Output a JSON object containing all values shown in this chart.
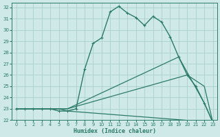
{
  "xlabel": "Humidex (Indice chaleur)",
  "bg_color": "#cfe8e8",
  "grid_color": "#a8d0cc",
  "line_color": "#2a7a6a",
  "xlim": [
    -0.5,
    23.5
  ],
  "ylim": [
    22,
    32.4
  ],
  "xticks": [
    0,
    1,
    2,
    3,
    4,
    5,
    6,
    7,
    8,
    9,
    10,
    11,
    12,
    13,
    14,
    15,
    16,
    17,
    18,
    19,
    20,
    21,
    22,
    23
  ],
  "yticks": [
    22,
    23,
    24,
    25,
    26,
    27,
    28,
    29,
    30,
    31,
    32
  ],
  "lines": [
    {
      "x": [
        0,
        1,
        2,
        3,
        4,
        5,
        6,
        7,
        8,
        9,
        10,
        11,
        12,
        13,
        14,
        15,
        16,
        17,
        18,
        19,
        20,
        21,
        22,
        23
      ],
      "y": [
        23,
        23,
        23,
        23,
        23,
        22.8,
        22.8,
        23.0,
        26.5,
        28.8,
        29.3,
        31.6,
        32.1,
        31.5,
        31.1,
        30.4,
        31.2,
        30.7,
        29.4,
        27.6,
        26.0,
        25.0,
        23.5,
        21.8
      ],
      "marker": "+",
      "lw": 1.0
    },
    {
      "x": [
        0,
        5,
        6,
        19,
        22,
        23
      ],
      "y": [
        23,
        23,
        23,
        27.6,
        23.5,
        21.8
      ],
      "marker": null,
      "lw": 0.9
    },
    {
      "x": [
        0,
        5,
        6,
        20,
        22,
        23
      ],
      "y": [
        23,
        23,
        23,
        26.0,
        25.0,
        21.8
      ],
      "marker": null,
      "lw": 0.9
    },
    {
      "x": [
        0,
        5,
        6,
        23
      ],
      "y": [
        23,
        23,
        22.8,
        21.8
      ],
      "marker": null,
      "lw": 0.9
    }
  ]
}
